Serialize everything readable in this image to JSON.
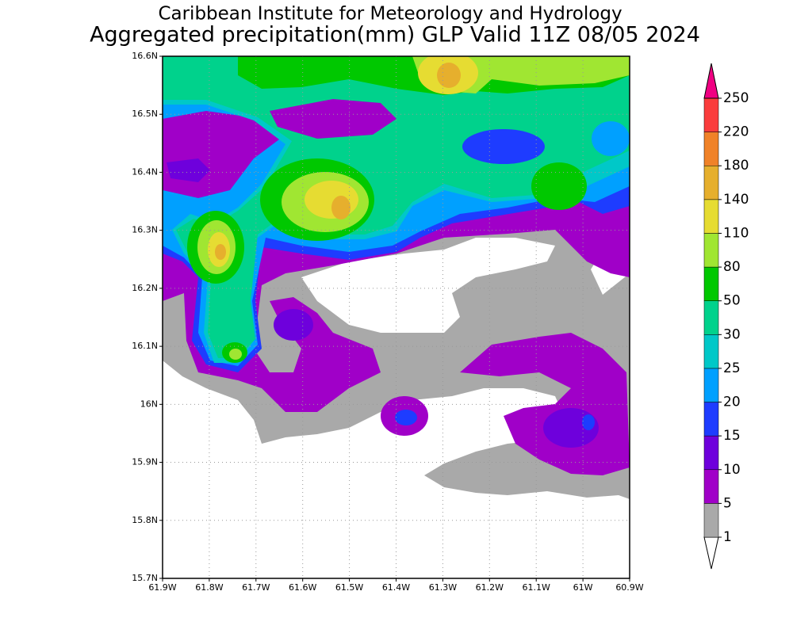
{
  "title": "Caribbean Institute for Meteorology and Hydrology",
  "subtitle": "Aggregated precipitation(mm) GLP Valid 11Z 08/05 2024",
  "map": {
    "xlim": [
      -61.9,
      -60.9
    ],
    "ylim": [
      15.7,
      16.6
    ],
    "xticks": [
      {
        "value": -61.9,
        "label": "61.9W"
      },
      {
        "value": -61.8,
        "label": "61.8W"
      },
      {
        "value": -61.7,
        "label": "61.7W"
      },
      {
        "value": -61.6,
        "label": "61.6W"
      },
      {
        "value": -61.5,
        "label": "61.5W"
      },
      {
        "value": -61.4,
        "label": "61.4W"
      },
      {
        "value": -61.3,
        "label": "61.3W"
      },
      {
        "value": -61.2,
        "label": "61.2W"
      },
      {
        "value": -61.1,
        "label": "61.1W"
      },
      {
        "value": -61.0,
        "label": "61W"
      },
      {
        "value": -60.9,
        "label": "60.9W"
      }
    ],
    "yticks": [
      {
        "value": 15.7,
        "label": "15.7N"
      },
      {
        "value": 15.8,
        "label": "15.8N"
      },
      {
        "value": 15.9,
        "label": "15.9N"
      },
      {
        "value": 16.0,
        "label": "16N"
      },
      {
        "value": 16.1,
        "label": "16.1N"
      },
      {
        "value": 16.2,
        "label": "16.2N"
      },
      {
        "value": 16.3,
        "label": "16.3N"
      },
      {
        "value": 16.4,
        "label": "16.4N"
      },
      {
        "value": 16.5,
        "label": "16.5N"
      },
      {
        "value": 16.6,
        "label": "16.6N"
      }
    ],
    "grid": true,
    "colorbar": {
      "levels": [
        1,
        5,
        10,
        15,
        20,
        25,
        30,
        50,
        80,
        110,
        140,
        180,
        220,
        250
      ],
      "colors": [
        "#ffffff",
        "#a9a9a9",
        "#a000c8",
        "#6e00dc",
        "#1e3cff",
        "#00a0ff",
        "#00c8c8",
        "#00d28c",
        "#00c800",
        "#a0e632",
        "#e6dc32",
        "#e6af2d",
        "#f08228",
        "#fa3c3c",
        "#f00082"
      ]
    }
  }
}
